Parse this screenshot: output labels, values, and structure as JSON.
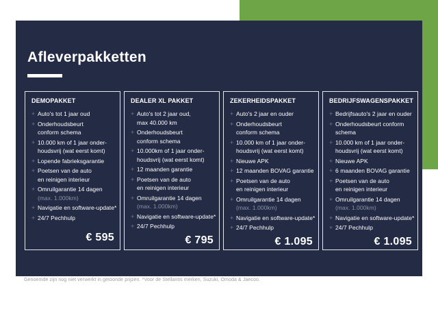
{
  "header": {
    "title": "Afleverpakketten"
  },
  "icons": {
    "plus_bullet": "+"
  },
  "colors": {
    "panel_navy": "#242b45",
    "accent_green": "#6ea546",
    "bullet_slate": "#6e7a96",
    "dim_text": "#8b92a6",
    "card_border": "#e6e9f0",
    "text_white": "#ffffff",
    "footnote_gray": "#9b9b9b"
  },
  "cards": [
    {
      "title": "DEMOPAKKET",
      "price": "€ 595",
      "items": [
        {
          "lines": [
            "Auto's tot 1 jaar oud"
          ]
        },
        {
          "lines": [
            "Onderhoudsbeurt",
            "conform schema"
          ]
        },
        {
          "lines": [
            "10.000 km of 1 jaar onder-",
            "houdsvrij (wat eerst komt)"
          ]
        },
        {
          "lines": [
            "Lopende fabrieksgarantie"
          ]
        },
        {
          "lines": [
            "Poetsen van de auto",
            "en reinigen interieur"
          ]
        },
        {
          "lines": [
            "Omruilgarantie 14 dagen",
            "(max. 1.000km)"
          ],
          "dim_from": 1
        },
        {
          "lines": [
            "Navigatie en software-update*"
          ]
        },
        {
          "lines": [
            "24/7 Pechhulp"
          ]
        }
      ]
    },
    {
      "title": "DEALER XL PAKKET",
      "price": "€ 795",
      "items": [
        {
          "lines": [
            "Auto's tot 2 jaar oud,",
            "max 40.000 km"
          ]
        },
        {
          "lines": [
            "Onderhoudsbeurt",
            "conform schema"
          ]
        },
        {
          "lines": [
            "10.000km of 1 jaar onder-",
            "houdsvrij (wat eerst komt)"
          ]
        },
        {
          "lines": [
            "12 maanden garantie"
          ]
        },
        {
          "lines": [
            "Poetsen van de auto",
            "en reinigen interieur"
          ]
        },
        {
          "lines": [
            "Omruilgarantie 14 dagen",
            "(max. 1.000km)"
          ],
          "dim_from": 1
        },
        {
          "lines": [
            "Navigatie en software-update*"
          ]
        },
        {
          "lines": [
            "24/7 Pechhulp"
          ]
        }
      ]
    },
    {
      "title": "ZEKERHEIDSPAKKET",
      "price": "€ 1.095",
      "items": [
        {
          "lines": [
            "Auto's 2 jaar en ouder"
          ]
        },
        {
          "lines": [
            "Onderhoudsbeurt",
            "conform schema"
          ]
        },
        {
          "lines": [
            "10.000 km of 1 jaar onder-",
            "houdsvrij (wat eerst komt)"
          ]
        },
        {
          "lines": [
            "Nieuwe APK"
          ]
        },
        {
          "lines": [
            "12 maanden BOVAG garantie"
          ]
        },
        {
          "lines": [
            "Poetsen van de auto",
            "en reinigen interieur"
          ]
        },
        {
          "lines": [
            "Omruilgarantie 14 dagen",
            "(max. 1.000km)"
          ],
          "dim_from": 1
        },
        {
          "lines": [
            "Navigatie en software-update*"
          ]
        },
        {
          "lines": [
            "24/7 Pechhulp"
          ]
        }
      ]
    },
    {
      "title": "BEDRIJFSWAGENSPAKKET",
      "price": "€ 1.095",
      "items": [
        {
          "lines": [
            "Bedrijfsauto's 2 jaar en ouder"
          ]
        },
        {
          "lines": [
            "Onderhoudsbeurt conform",
            "schema"
          ]
        },
        {
          "lines": [
            "10.000 km of 1 jaar onder-",
            "houdsvrij (wat eerst komt)"
          ]
        },
        {
          "lines": [
            "Nieuwe APK"
          ]
        },
        {
          "lines": [
            "6 maanden BOVAG garantie"
          ]
        },
        {
          "lines": [
            "Poetsen van de auto",
            "en reinigen interieur"
          ]
        },
        {
          "lines": [
            "Omruilgarantie 14 dagen",
            "(max. 1.000km)"
          ],
          "dim_from": 1
        },
        {
          "lines": [
            "Navigatie en software-update*"
          ]
        },
        {
          "lines": [
            "24/7 Pechhulp"
          ]
        }
      ]
    }
  ],
  "footnote": "Genoemde zijn nog niet verwerkt in getoonde prijzen. *Voor de Stellantis merken, Suzuki, Omoda & Jaecoo."
}
